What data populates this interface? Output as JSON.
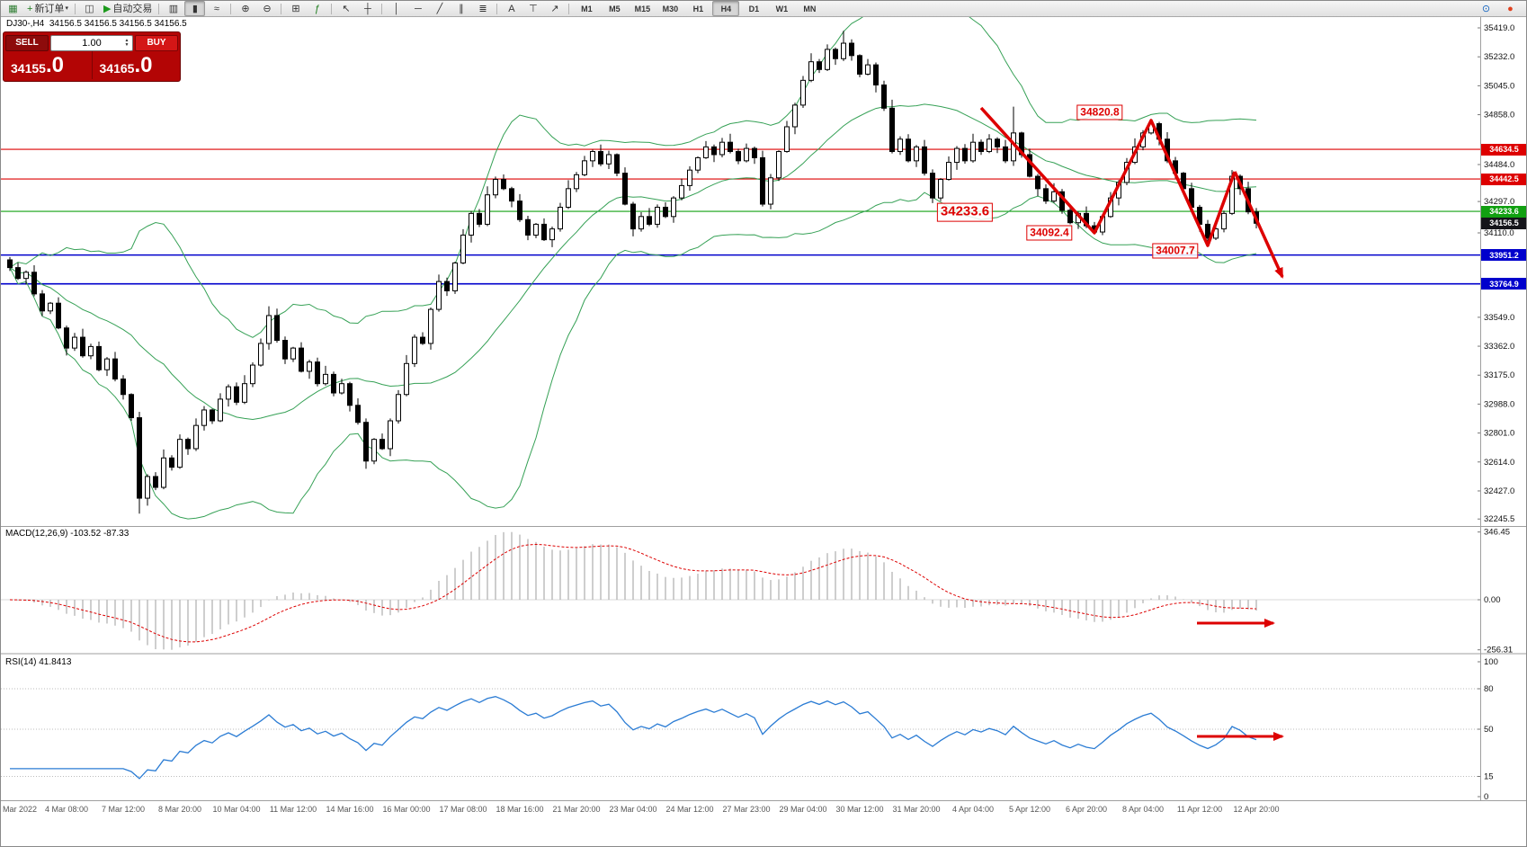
{
  "toolbar": {
    "items": [
      {
        "type": "icon",
        "name": "app-chart-icon",
        "glyph": "▦",
        "color": "#2e7d32"
      },
      {
        "type": "text-button",
        "name": "new-order-button",
        "glyph": "+",
        "glyph_color": "#1c7c1c",
        "label": "新订单",
        "caret": true
      },
      {
        "type": "sep"
      },
      {
        "type": "icon",
        "name": "open-chart-icon",
        "glyph": "◫",
        "color": "#444444"
      },
      {
        "type": "text-button",
        "name": "autotrading-button",
        "glyph": "▶",
        "glyph_color": "#1c9a1c",
        "label": "自动交易"
      },
      {
        "type": "sep"
      },
      {
        "type": "icon",
        "name": "bar-chart-icon",
        "glyph": "▥"
      },
      {
        "type": "icon",
        "name": "candlestick-chart-icon",
        "glyph": "▮",
        "active": true
      },
      {
        "type": "icon",
        "name": "line-chart-icon",
        "glyph": "≈"
      },
      {
        "type": "sep"
      },
      {
        "type": "icon",
        "name": "zoom-in-icon",
        "glyph": "⊕"
      },
      {
        "type": "icon",
        "name": "zoom-out-icon",
        "glyph": "⊖"
      },
      {
        "type": "sep"
      },
      {
        "type": "icon",
        "name": "tile-windows-icon",
        "glyph": "⊞"
      },
      {
        "type": "icon",
        "name": "indicators-icon",
        "glyph": "ƒ",
        "color": "#1c7c1c"
      },
      {
        "type": "sep"
      },
      {
        "type": "icon",
        "name": "cursor-icon",
        "glyph": "↖"
      },
      {
        "type": "icon",
        "name": "crosshair-icon",
        "glyph": "┼"
      },
      {
        "type": "sep"
      },
      {
        "type": "icon",
        "name": "vertical-line-icon",
        "glyph": "│"
      },
      {
        "type": "icon",
        "name": "horizontal-line-icon",
        "glyph": "─"
      },
      {
        "type": "icon",
        "name": "trendline-icon",
        "glyph": "╱"
      },
      {
        "type": "icon",
        "name": "equidistant-channel-icon",
        "glyph": "∥"
      },
      {
        "type": "icon",
        "name": "fibonacci-icon",
        "glyph": "≣"
      },
      {
        "type": "sep"
      },
      {
        "type": "icon",
        "name": "text-icon",
        "glyph": "A"
      },
      {
        "type": "icon",
        "name": "text-label-icon",
        "glyph": "⊤"
      },
      {
        "type": "icon",
        "name": "arrows-icon",
        "glyph": "↗"
      },
      {
        "type": "sep"
      }
    ],
    "timeframes": [
      "M1",
      "M5",
      "M15",
      "M30",
      "H1",
      "H4",
      "D1",
      "W1",
      "MN"
    ],
    "active_timeframe": "H4",
    "right_icons": [
      {
        "name": "search-icon",
        "glyph": "⊙",
        "color": "#1565c0"
      },
      {
        "name": "profile-icon",
        "glyph": "●",
        "color": "#e0401e"
      }
    ]
  },
  "symbol_info": {
    "symbol": "DJ30-,H4",
    "ohlc": "34156.5 34156.5 34156.5 34156.5"
  },
  "trade_panel": {
    "sell_label": "SELL",
    "buy_label": "BUY",
    "volume": "1.00",
    "sell_price_small": "34155",
    "sell_price_big": ".0",
    "buy_price_small": "34165",
    "buy_price_big": ".0"
  },
  "chart_data": {
    "type": "candlestick",
    "symbol": "DJ30-",
    "timeframe": "H4",
    "style": {
      "bands": "#36a156",
      "up": "#ffffff",
      "down": "#000000",
      "macd_hist": "#b9b9b9",
      "macd_signal": "#dd0000",
      "rsi_line": "#2b7cd4",
      "annotation": "#dd0000"
    },
    "price_axis_labels": [
      "35419.0",
      "35232.0",
      "35045.0",
      "34858.0",
      "34484.0",
      "34297.0",
      "34110.0",
      "33549.0",
      "33362.0",
      "33175.0",
      "32988.0",
      "32801.0",
      "32614.0",
      "32427.0",
      "32245.5"
    ],
    "hlines": [
      {
        "label": "34634.5",
        "value": 34634.5,
        "color": "#dd0000"
      },
      {
        "label": "34442.5",
        "value": 34442.5,
        "color": "#dd0000"
      },
      {
        "label": "34233.6",
        "value": 34233.6,
        "color": "#11a011"
      },
      {
        "label": "33951.2",
        "value": 33951.2,
        "color": "#0000cc"
      },
      {
        "label": "33764.9",
        "value": 33764.9,
        "color": "#0000cc"
      }
    ],
    "current_price": {
      "label": "34156.5",
      "value": 34156.5
    },
    "candles": {
      "open_first": 33920,
      "closes": [
        33870,
        33800,
        33840,
        33700,
        33590,
        33640,
        33480,
        33350,
        33420,
        33300,
        33360,
        33210,
        33280,
        33150,
        33050,
        32900,
        32380,
        32520,
        32450,
        32640,
        32580,
        32760,
        32700,
        32850,
        32950,
        32880,
        33020,
        33100,
        33000,
        33120,
        33240,
        33380,
        33560,
        33400,
        33280,
        33350,
        33200,
        33260,
        33120,
        33180,
        33060,
        33120,
        32980,
        32870,
        32620,
        32760,
        32700,
        32880,
        33050,
        33250,
        33420,
        33380,
        33600,
        33780,
        33720,
        33900,
        34080,
        34220,
        34150,
        34340,
        34440,
        34380,
        34300,
        34180,
        34080,
        34150,
        34050,
        34120,
        34260,
        34380,
        34470,
        34560,
        34620,
        34540,
        34600,
        34480,
        34280,
        34120,
        34200,
        34150,
        34260,
        34200,
        34320,
        34400,
        34500,
        34580,
        34650,
        34600,
        34680,
        34620,
        34560,
        34640,
        34580,
        34280,
        34450,
        34620,
        34780,
        34920,
        35080,
        35200,
        35150,
        35280,
        35220,
        35320,
        35240,
        35120,
        35180,
        35050,
        34900,
        34620,
        34700,
        34560,
        34650,
        34480,
        34320,
        34440,
        34550,
        34640,
        34560,
        34680,
        34620,
        34700,
        34650,
        34560,
        34740,
        34600,
        34460,
        34380,
        34300,
        34360,
        34240,
        34160,
        34220,
        34140,
        34100,
        34200,
        34320,
        34420,
        34550,
        34650,
        34740,
        34800,
        34700,
        34560,
        34480,
        34380,
        34260,
        34150,
        34060,
        34120,
        34220,
        34460,
        34380,
        34230,
        34156.5
      ],
      "wick_up": [
        18,
        32,
        12,
        45,
        25,
        8,
        38,
        15,
        28,
        55
      ],
      "wick_down": [
        22,
        10,
        40,
        15,
        33,
        20,
        8,
        48,
        18,
        12
      ],
      "overrides": {
        "16": {
          "low": 32280
        },
        "32": {
          "high": 33620
        },
        "44": {
          "low": 32570
        },
        "103": {
          "high": 35400
        },
        "124": {
          "high": 34910
        },
        "134": {
          "low": 34092.4
        },
        "141": {
          "high": 34820.8
        },
        "148": {
          "low": 34007.7
        },
        "151": {
          "high": 34500
        }
      }
    },
    "time_labels": [
      "Mar 2022",
      "4 Mar 08:00",
      "7 Mar 12:00",
      "8 Mar 20:00",
      "10 Mar 04:00",
      "11 Mar 12:00",
      "14 Mar 16:00",
      "16 Mar 00:00",
      "17 Mar 08:00",
      "18 Mar 16:00",
      "21 Mar 20:00",
      "23 Mar 04:00",
      "24 Mar 12:00",
      "27 Mar 23:00",
      "29 Mar 04:00",
      "30 Mar 12:00",
      "31 Mar 20:00",
      "4 Apr 04:00",
      "5 Apr 12:00",
      "6 Apr 20:00",
      "8 Apr 04:00",
      "11 Apr 12:00",
      "12 Apr 20:00"
    ],
    "macd": {
      "header": "MACD(12,26,9) -103.52 -87.33",
      "axis_labels": [
        "346.45",
        "0.00",
        "-256.31"
      ]
    },
    "rsi": {
      "header": "RSI(14) 41.8413",
      "axis_labels": [
        "100",
        "80",
        "50",
        "15",
        "0"
      ],
      "levels": [
        80,
        50,
        15
      ]
    },
    "annotations": {
      "price_labels": [
        "34820.8",
        "34233.6",
        "34092.4",
        "34007.7"
      ],
      "trend_note": "red zigzag arrow projecting further decline"
    }
  }
}
